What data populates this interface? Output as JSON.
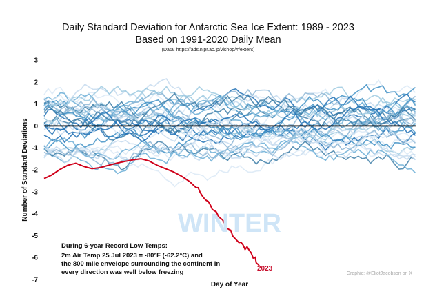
{
  "chart_data": {
    "type": "line",
    "title": "Daily Standard Deviation for Antarctic Sea Ice Extent: 1989 - 2023",
    "subtitle": "Based on 1991-2020 Daily Mean",
    "source": "(Data: https://ads.nipr.ac.jp/vishop/#/extent)",
    "xlabel": "Day of Year",
    "ylabel": "Number of Standard Deviations",
    "xlim": [
      1,
      366
    ],
    "ylim": [
      -7,
      3
    ],
    "yticks": [
      "3",
      "2",
      "1",
      "0",
      "-1",
      "-2",
      "-3",
      "-4",
      "-5",
      "-6",
      "-7"
    ],
    "watermark": "WINTER",
    "annotation": {
      "heading": "During 6-year Record Low Temps:",
      "lines": [
        "2m Air Temp 25 Jul 2023 = -80°F (-62.2°C) and",
        "the 800 mile envelope surrounding the continent in",
        "every direction was well below freezing"
      ]
    },
    "credit": "Graphic: @EliotJacobson on X",
    "highlight_series": {
      "name": "2023",
      "color": "#d0021b",
      "x": [
        1,
        8,
        16,
        24,
        32,
        40,
        48,
        56,
        64,
        72,
        80,
        88,
        96,
        104,
        112,
        120,
        128,
        136,
        144,
        152,
        160,
        168,
        176,
        184,
        192,
        200,
        208,
        212
      ],
      "y": [
        -2.4,
        -2.25,
        -2.0,
        -1.8,
        -1.7,
        -1.85,
        -1.95,
        -1.9,
        -1.8,
        -1.7,
        -1.62,
        -1.55,
        -1.5,
        -1.6,
        -1.8,
        -1.95,
        -2.1,
        -2.3,
        -2.55,
        -2.9,
        -3.35,
        -3.85,
        -4.35,
        -4.85,
        -5.3,
        -5.6,
        -6.05,
        -6.4
      ]
    },
    "zero_line_color": "#000000",
    "background_series_colors": [
      "#dbe9f6",
      "#c6dbef",
      "#9ecae1",
      "#6baed6",
      "#4292c6",
      "#2171b5",
      "#3f7fa8",
      "#8fb7d6"
    ],
    "background_series_count": 34
  }
}
